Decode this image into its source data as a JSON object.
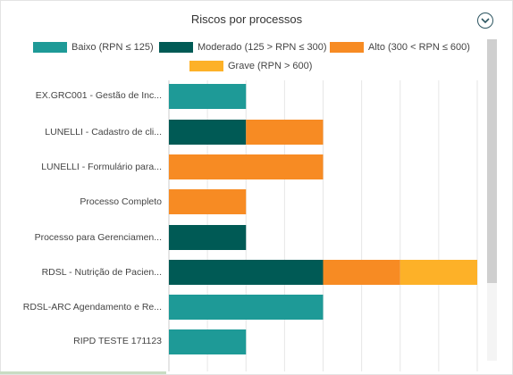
{
  "chart_data": {
    "type": "bar",
    "orientation": "horizontal",
    "stacked": true,
    "title": "Riscos por processos",
    "categories": [
      "EX.GRC001 - Gestão de Inc...",
      "LUNELLI - Cadastro de cli...",
      "LUNELLI - Formulário para...",
      "Processo Completo",
      "Processo para Gerenciamen...",
      "RDSL - Nutrição de Pacien...",
      "RDSL-ARC Agendamento e Re...",
      "RIPD TESTE 171123"
    ],
    "series": [
      {
        "name": "Baixo (RPN ≤ 125)",
        "color": "#1e9a97",
        "values": [
          1,
          0,
          0,
          0,
          0,
          0,
          2,
          1
        ]
      },
      {
        "name": "Moderado (125 > RPN ≤ 300)",
        "color": "#005a55",
        "values": [
          0,
          1,
          0,
          0,
          1,
          2,
          0,
          0
        ]
      },
      {
        "name": "Alto (300 < RPN ≤ 600)",
        "color": "#f78b23",
        "values": [
          0,
          1,
          2,
          1,
          0,
          1,
          0,
          0
        ]
      },
      {
        "name": "Grave (RPN > 600)",
        "color": "#fdb128",
        "values": [
          0,
          0,
          0,
          0,
          0,
          1,
          0,
          0
        ]
      }
    ],
    "xlim": [
      0,
      4
    ],
    "grid": true,
    "legend_position": "top"
  },
  "icons": {
    "collapse": "chevron-down-icon"
  }
}
